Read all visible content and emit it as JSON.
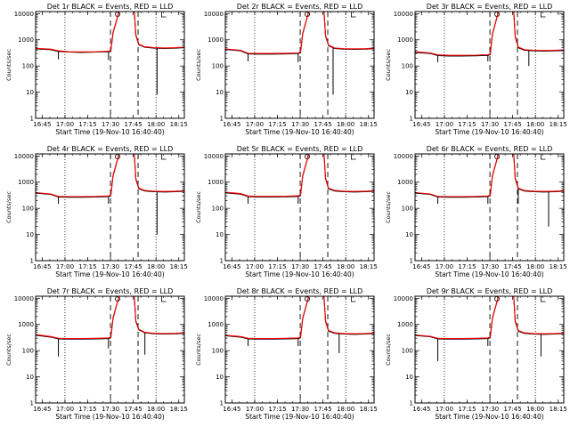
{
  "chart_data": {
    "type": "line",
    "yscale": "log",
    "ylim": [
      1,
      12000
    ],
    "ylabel": "Counts/sec",
    "xlabel": "Start Time (19-Nov-10 16:40:40)",
    "x_ticks": [
      "16:45",
      "17:00",
      "17:15",
      "17:30",
      "17:45",
      "18:00",
      "18:15"
    ],
    "x_tick_minutes": [
      4.33,
      19.33,
      34.33,
      49.33,
      64.33,
      79.33,
      94.33
    ],
    "xlim_minutes": [
      0,
      98
    ],
    "y_ticks": [
      {
        "value": 1,
        "label": "1"
      },
      {
        "value": 10,
        "label": "10"
      },
      {
        "value": 100,
        "label": "100"
      },
      {
        "value": 1000,
        "label": "1000"
      },
      {
        "value": 10000,
        "label": "10000"
      }
    ],
    "series_colors": {
      "events": "#000000",
      "lld": "#ff0000"
    },
    "markers": {
      "dotted_minutes": [
        19.33,
        79.33
      ],
      "dashed_minutes": [
        49.33,
        67.5
      ]
    },
    "panels": [
      {
        "title": "Det 1r BLACK = Events, RED = LLD",
        "events": {
          "x": [
            0,
            10,
            15,
            22,
            30,
            40,
            48,
            49.5,
            51,
            55,
            60,
            65,
            66,
            68,
            72,
            78,
            85,
            92,
            98
          ],
          "y": [
            450,
            420,
            360,
            340,
            330,
            340,
            350,
            370,
            1800,
            12000,
            12000,
            12000,
            1500,
            650,
            520,
            480,
            470,
            480,
            500
          ]
        },
        "lld": {
          "x": [
            0,
            10,
            15,
            22,
            30,
            40,
            48,
            49.5,
            51,
            55,
            60,
            65,
            66,
            68,
            72,
            78,
            85,
            92,
            98
          ],
          "y": [
            470,
            440,
            380,
            350,
            345,
            350,
            365,
            390,
            1900,
            12000,
            12000,
            12000,
            1600,
            680,
            540,
            500,
            490,
            500,
            520
          ]
        },
        "dips": [
          {
            "x": 15,
            "y": 180
          },
          {
            "x": 48,
            "y": 170
          },
          {
            "x": 80,
            "y": 8
          }
        ]
      },
      {
        "title": "Det 2r BLACK = Events, RED = LLD",
        "events": {
          "x": [
            0,
            10,
            15,
            22,
            30,
            40,
            48,
            49.5,
            51,
            55,
            60,
            65,
            66,
            68,
            72,
            78,
            85,
            92,
            98
          ],
          "y": [
            430,
            380,
            290,
            285,
            285,
            290,
            300,
            320,
            1700,
            12000,
            12000,
            12000,
            1400,
            600,
            470,
            440,
            430,
            440,
            460
          ]
        },
        "lld": {
          "x": [
            0,
            10,
            15,
            22,
            30,
            40,
            48,
            49.5,
            51,
            55,
            60,
            65,
            66,
            68,
            72,
            78,
            85,
            92,
            98
          ],
          "y": [
            450,
            400,
            305,
            300,
            300,
            305,
            315,
            340,
            1800,
            12000,
            12000,
            12000,
            1500,
            630,
            490,
            460,
            450,
            460,
            480
          ]
        },
        "dips": [
          {
            "x": 15,
            "y": 150
          },
          {
            "x": 48,
            "y": 140
          },
          {
            "x": 71,
            "y": 8
          }
        ]
      },
      {
        "title": "Det 3r BLACK = Events, RED = LLD",
        "events": {
          "x": [
            0,
            10,
            15,
            22,
            30,
            40,
            48,
            49.5,
            51,
            55,
            60,
            65,
            66,
            68,
            72,
            78,
            85,
            92,
            98
          ],
          "y": [
            330,
            300,
            250,
            240,
            240,
            245,
            255,
            270,
            1600,
            12000,
            12000,
            12000,
            1300,
            500,
            400,
            380,
            370,
            380,
            390
          ]
        },
        "lld": {
          "x": [
            0,
            10,
            15,
            22,
            30,
            40,
            48,
            49.5,
            51,
            55,
            60,
            65,
            66,
            68,
            72,
            78,
            85,
            92,
            98
          ],
          "y": [
            350,
            315,
            265,
            255,
            255,
            260,
            270,
            290,
            1700,
            12000,
            12000,
            12000,
            1400,
            530,
            420,
            400,
            390,
            400,
            410
          ]
        },
        "dips": [
          {
            "x": 15,
            "y": 140
          },
          {
            "x": 48,
            "y": 150
          },
          {
            "x": 75,
            "y": 100
          }
        ]
      },
      {
        "title": "Det 4r BLACK = Events, RED = LLD",
        "events": {
          "x": [
            0,
            10,
            15,
            22,
            30,
            40,
            48,
            49.5,
            51,
            55,
            60,
            65,
            66,
            68,
            72,
            78,
            85,
            92,
            98
          ],
          "y": [
            380,
            340,
            270,
            265,
            265,
            270,
            280,
            300,
            1700,
            12000,
            12000,
            12000,
            1300,
            560,
            460,
            430,
            420,
            430,
            450
          ]
        },
        "lld": {
          "x": [
            0,
            10,
            15,
            22,
            30,
            40,
            48,
            49.5,
            51,
            55,
            60,
            65,
            66,
            68,
            72,
            78,
            85,
            92,
            98
          ],
          "y": [
            400,
            355,
            285,
            280,
            280,
            285,
            295,
            320,
            1800,
            12000,
            12000,
            12000,
            1400,
            590,
            480,
            450,
            440,
            450,
            470
          ]
        },
        "dips": [
          {
            "x": 15,
            "y": 150
          },
          {
            "x": 48,
            "y": 150
          },
          {
            "x": 80,
            "y": 10
          }
        ]
      },
      {
        "title": "Det 5r BLACK = Events, RED = LLD",
        "events": {
          "x": [
            0,
            10,
            15,
            22,
            30,
            40,
            48,
            49.5,
            51,
            55,
            60,
            65,
            66,
            68,
            72,
            78,
            85,
            92,
            98
          ],
          "y": [
            390,
            350,
            280,
            270,
            270,
            275,
            285,
            305,
            1700,
            12000,
            12000,
            12000,
            1350,
            560,
            460,
            430,
            420,
            430,
            450
          ]
        },
        "lld": {
          "x": [
            0,
            10,
            15,
            22,
            30,
            40,
            48,
            49.5,
            51,
            55,
            60,
            65,
            66,
            68,
            72,
            78,
            85,
            92,
            98
          ],
          "y": [
            410,
            365,
            295,
            285,
            285,
            290,
            300,
            325,
            1800,
            12000,
            12000,
            12000,
            1450,
            590,
            480,
            450,
            440,
            450,
            470
          ]
        },
        "dips": [
          {
            "x": 15,
            "y": 150
          },
          {
            "x": 48,
            "y": 150
          }
        ]
      },
      {
        "title": "Det 6r BLACK = Events, RED = LLD",
        "events": {
          "x": [
            0,
            10,
            15,
            22,
            30,
            40,
            48,
            49.5,
            51,
            55,
            60,
            65,
            66,
            68,
            72,
            78,
            85,
            92,
            98
          ],
          "y": [
            380,
            340,
            270,
            265,
            265,
            270,
            280,
            300,
            1700,
            12000,
            12000,
            12000,
            1350,
            560,
            460,
            430,
            420,
            430,
            450
          ]
        },
        "lld": {
          "x": [
            0,
            10,
            15,
            22,
            30,
            40,
            48,
            49.5,
            51,
            55,
            60,
            65,
            66,
            68,
            72,
            78,
            85,
            92,
            98
          ],
          "y": [
            400,
            355,
            285,
            280,
            280,
            285,
            295,
            320,
            1800,
            12000,
            12000,
            12000,
            1450,
            590,
            480,
            450,
            440,
            450,
            470
          ]
        },
        "dips": [
          {
            "x": 15,
            "y": 150
          },
          {
            "x": 48,
            "y": 150
          },
          {
            "x": 68,
            "y": 150
          },
          {
            "x": 88,
            "y": 20
          }
        ]
      },
      {
        "title": "Det 7r BLACK = Events, RED = LLD",
        "events": {
          "x": [
            0,
            10,
            15,
            22,
            30,
            40,
            48,
            49.5,
            51,
            55,
            60,
            65,
            66,
            68,
            72,
            78,
            85,
            92,
            98
          ],
          "y": [
            390,
            330,
            280,
            275,
            275,
            280,
            290,
            310,
            1700,
            12000,
            12000,
            12000,
            1300,
            620,
            480,
            440,
            430,
            440,
            460
          ]
        },
        "lld": {
          "x": [
            0,
            10,
            15,
            22,
            30,
            40,
            48,
            49.5,
            51,
            55,
            60,
            65,
            66,
            68,
            72,
            78,
            85,
            92,
            98
          ],
          "y": [
            410,
            345,
            295,
            290,
            290,
            295,
            305,
            330,
            1800,
            12000,
            12000,
            12000,
            1400,
            650,
            500,
            460,
            450,
            460,
            480
          ]
        },
        "dips": [
          {
            "x": 15,
            "y": 60
          },
          {
            "x": 48,
            "y": 120
          },
          {
            "x": 72,
            "y": 70
          }
        ]
      },
      {
        "title": "Det 8r BLACK = Events, RED = LLD",
        "events": {
          "x": [
            0,
            10,
            15,
            22,
            30,
            40,
            48,
            49.5,
            51,
            55,
            60,
            65,
            66,
            68,
            72,
            78,
            85,
            92,
            98
          ],
          "y": [
            370,
            330,
            280,
            275,
            275,
            280,
            290,
            310,
            1700,
            12000,
            12000,
            12000,
            1300,
            560,
            460,
            430,
            420,
            430,
            450
          ]
        },
        "lld": {
          "x": [
            0,
            10,
            15,
            22,
            30,
            40,
            48,
            49.5,
            51,
            55,
            60,
            65,
            66,
            68,
            72,
            78,
            85,
            92,
            98
          ],
          "y": [
            390,
            345,
            295,
            290,
            290,
            295,
            305,
            330,
            1800,
            12000,
            12000,
            12000,
            1400,
            590,
            480,
            450,
            440,
            450,
            470
          ]
        },
        "dips": [
          {
            "x": 15,
            "y": 150
          },
          {
            "x": 48,
            "y": 150
          },
          {
            "x": 75,
            "y": 80
          }
        ]
      },
      {
        "title": "Det 9r BLACK = Events, RED = LLD",
        "events": {
          "x": [
            0,
            10,
            15,
            22,
            30,
            40,
            48,
            49.5,
            51,
            55,
            60,
            65,
            66,
            68,
            72,
            78,
            85,
            92,
            98
          ],
          "y": [
            380,
            340,
            280,
            275,
            275,
            280,
            290,
            310,
            1700,
            12000,
            12000,
            12000,
            1300,
            560,
            460,
            430,
            420,
            430,
            450
          ]
        },
        "lld": {
          "x": [
            0,
            10,
            15,
            22,
            30,
            40,
            48,
            49.5,
            51,
            55,
            60,
            65,
            66,
            68,
            72,
            78,
            85,
            92,
            98
          ],
          "y": [
            400,
            355,
            295,
            290,
            290,
            295,
            305,
            330,
            1800,
            12000,
            12000,
            12000,
            1400,
            590,
            480,
            450,
            440,
            450,
            470
          ]
        },
        "dips": [
          {
            "x": 15,
            "y": 40
          },
          {
            "x": 48,
            "y": 150
          },
          {
            "x": 83,
            "y": 60
          }
        ]
      }
    ]
  }
}
